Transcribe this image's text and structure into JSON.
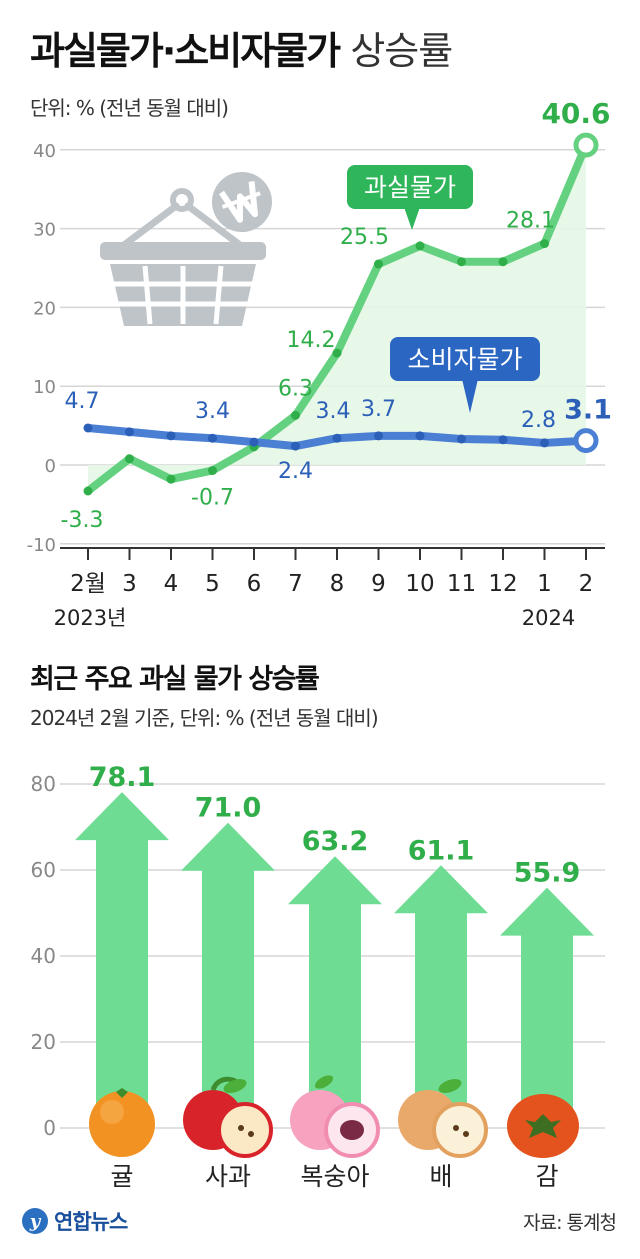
{
  "header": {
    "title_bold": "과실물가·소비자물가",
    "title_thin": "상승률",
    "unit": "단위: % (전년 동월 대비)"
  },
  "section2": {
    "title": "최근 주요 과실 물가 상승률",
    "unit": "2024년 2월 기준, 단위: % (전년 동월 대비)"
  },
  "footer": {
    "logo_text": "연합뉴스",
    "source": "자료: 통계청"
  },
  "colors": {
    "fruit_line": "#63d17f",
    "fruit_label": "#2fae4a",
    "fruit_fill": "#e4f6e6",
    "consumer_line": "#4a7fd3",
    "consumer_label": "#2b5fb8",
    "bar_arrow": "#6edc93",
    "grid": "#d6d6d6"
  },
  "icons": [
    "shopping-basket-icon",
    "won-sign-icon",
    "orange-icon",
    "apple-icon",
    "peach-icon",
    "pear-icon",
    "persimmon-icon"
  ],
  "chart_data": [
    {
      "type": "line",
      "categories": [
        "2월",
        "3",
        "4",
        "5",
        "6",
        "7",
        "8",
        "9",
        "10",
        "11",
        "12",
        "1",
        "2"
      ],
      "year_labels": [
        "2023년",
        "2024"
      ],
      "yticks": [
        "-10",
        "0",
        "10",
        "20",
        "30",
        "40"
      ],
      "ylim": [
        -10,
        40
      ],
      "series": [
        {
          "name": "과실물가",
          "values": [
            -3.3,
            0.8,
            -1.8,
            -0.7,
            2.3,
            6.3,
            14.2,
            25.5,
            27.8,
            25.8,
            25.8,
            28.1,
            40.6
          ],
          "data_labels": [
            "-3.3",
            "",
            "",
            "-0.7",
            "",
            "6.3",
            "14.2",
            "25.5",
            "",
            "",
            "",
            "28.1",
            "40.6"
          ]
        },
        {
          "name": "소비자물가",
          "values": [
            4.7,
            4.2,
            3.7,
            3.4,
            2.9,
            2.4,
            3.4,
            3.7,
            3.7,
            3.3,
            3.2,
            2.8,
            3.1
          ],
          "data_labels": [
            "4.7",
            "",
            "",
            "3.4",
            "",
            "2.4",
            "3.4",
            "3.7",
            "",
            "",
            "",
            "2.8",
            "3.1"
          ]
        }
      ],
      "grid": true
    },
    {
      "type": "bar",
      "categories": [
        "귤",
        "사과",
        "복숭아",
        "배",
        "감"
      ],
      "values": [
        78.1,
        71.0,
        63.2,
        61.1,
        55.9
      ],
      "data_labels": [
        "78.1",
        "71.0",
        "63.2",
        "61.1",
        "55.9"
      ],
      "yticks": [
        "0",
        "20",
        "40",
        "60",
        "80"
      ],
      "ylim": [
        0,
        80
      ],
      "grid": true
    }
  ]
}
